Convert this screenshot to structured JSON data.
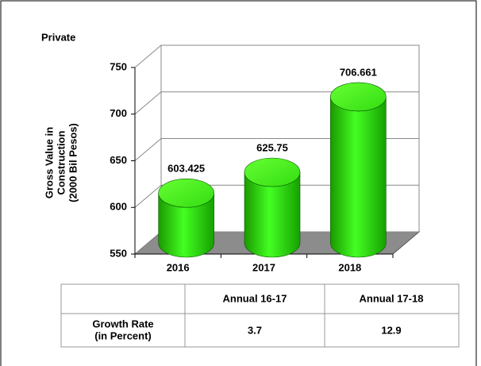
{
  "chart_data": {
    "type": "cylinder",
    "title": "Private",
    "y_label": [
      "Gross Value in",
      "Construction",
      "(2000 Bil Pesos)"
    ],
    "categories": [
      "2016",
      "2017",
      "2018"
    ],
    "values": [
      603.425,
      625.75,
      706.661
    ],
    "color": "#22cc00",
    "ylim": [
      550,
      750
    ],
    "yticks": [
      550,
      600,
      650,
      700,
      750
    ],
    "grid": true
  },
  "table": {
    "headers": [
      "Annual 16-17",
      "Annual 17-18"
    ],
    "row_label": [
      "Growth Rate",
      "(in Percent)"
    ],
    "values": [
      3.7,
      12.9
    ]
  }
}
